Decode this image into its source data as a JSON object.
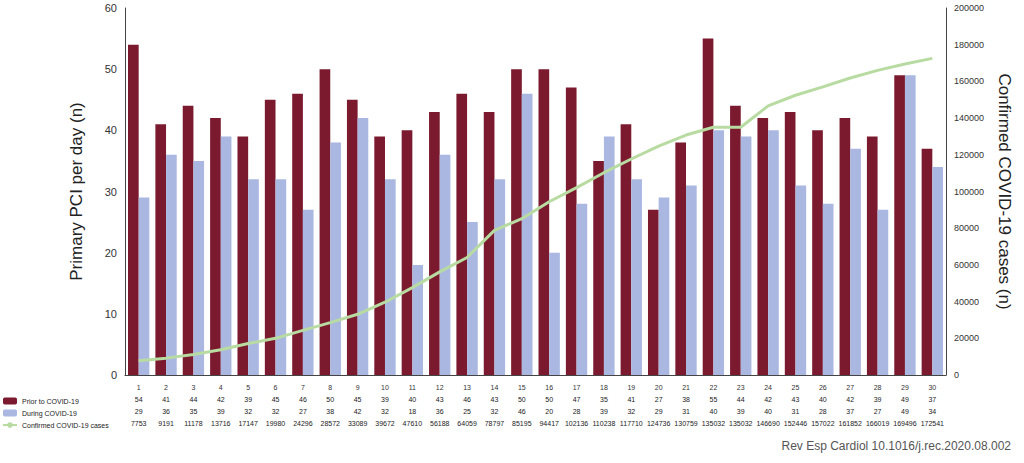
{
  "chart_data": {
    "type": "bar",
    "categories": [
      "1",
      "2",
      "3",
      "4",
      "5",
      "6",
      "7",
      "8",
      "9",
      "10",
      "11",
      "12",
      "13",
      "14",
      "15",
      "16",
      "17",
      "18",
      "19",
      "20",
      "21",
      "22",
      "23",
      "24",
      "25",
      "26",
      "27",
      "28",
      "29",
      "30"
    ],
    "series": [
      {
        "name": "Prior to COVID-19",
        "type": "bar",
        "color": "#7b1a2e",
        "values": [
          54,
          41,
          44,
          42,
          39,
          45,
          46,
          50,
          45,
          39,
          40,
          43,
          46,
          43,
          50,
          50,
          47,
          35,
          41,
          27,
          38,
          55,
          44,
          42,
          43,
          40,
          42,
          39,
          49,
          37
        ]
      },
      {
        "name": "During COVID-19",
        "type": "bar",
        "color": "#aab8e1",
        "values": [
          29,
          36,
          35,
          39,
          32,
          32,
          27,
          38,
          42,
          32,
          18,
          36,
          25,
          32,
          46,
          20,
          28,
          39,
          32,
          29,
          31,
          40,
          39,
          40,
          31,
          28,
          37,
          27,
          49,
          34
        ]
      },
      {
        "name": "Confirmed COVID-19 cases",
        "type": "line",
        "axis": "y2",
        "color": "#b8dba2",
        "values": [
          7753,
          9191,
          11178,
          13716,
          17147,
          19980,
          24296,
          28572,
          33089,
          39672,
          47610,
          56188,
          64059,
          78797,
          85195,
          94417,
          102136,
          110238,
          117710,
          124736,
          130759,
          135032,
          135032,
          146690,
          152446,
          157022,
          161852,
          166019,
          169496,
          172541
        ]
      }
    ],
    "y_label": "Primary PCI per day (n)",
    "y2_label": "Confirmed COVID-19 cases (n)",
    "ylim": [
      0,
      60
    ],
    "yticks": [
      0,
      10,
      20,
      30,
      40,
      50,
      60
    ],
    "y2lim": [
      0,
      200000
    ],
    "y2ticks": [
      0,
      20000,
      40000,
      60000,
      80000,
      100000,
      120000,
      140000,
      160000,
      180000,
      200000
    ],
    "source": "Rev Esp Cardiol 10.1016/j.rec.2020.08.002",
    "grid": false,
    "legend": "bottom-left"
  }
}
